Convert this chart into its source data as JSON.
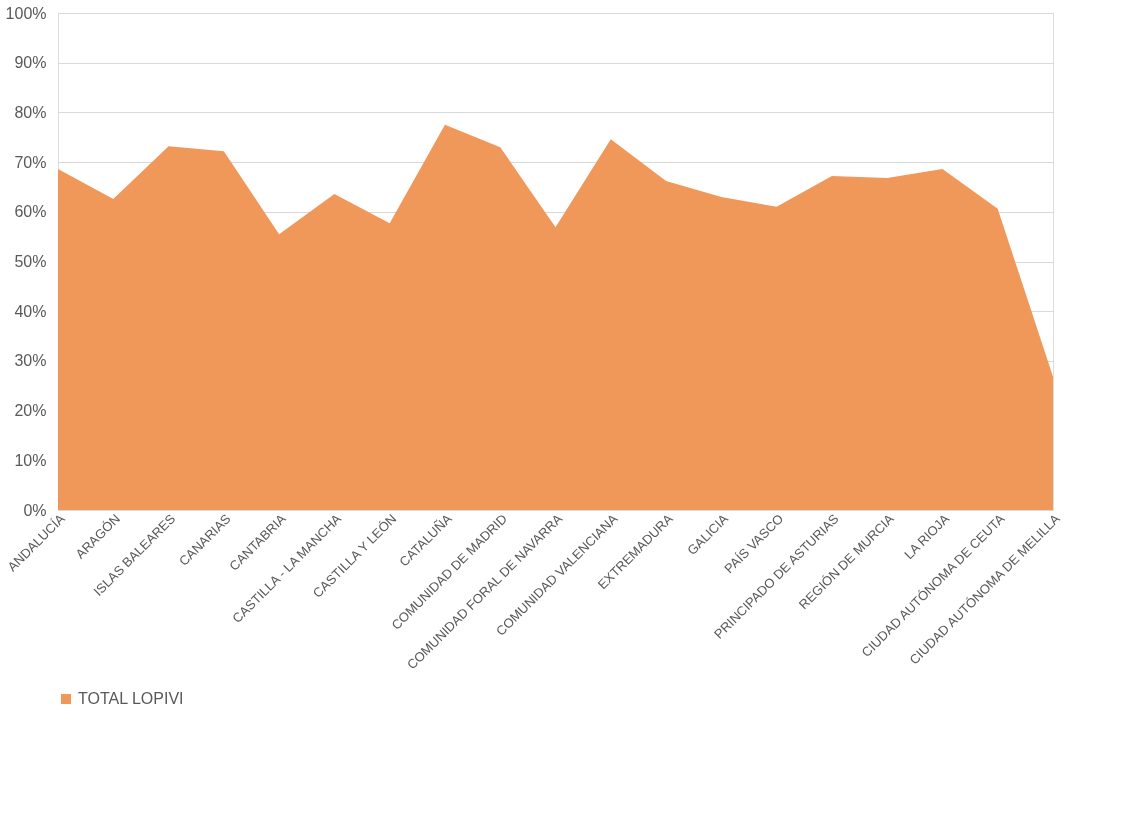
{
  "chart_data": {
    "type": "area",
    "categories": [
      "ANDALUCÍA",
      "ARAGÓN",
      "ISLAS BALEARES",
      "CANARIAS",
      "CANTABRIA",
      "CASTILLA - LA MANCHA",
      "CASTILLA Y LEÓN",
      "CATALUÑA",
      "COMUNIDAD DE MADRID",
      "COMUNIDAD FORAL DE NAVARRA",
      "COMUNIDAD VALENCIANA",
      "EXTREMADURA",
      "GALICIA",
      "PAÍS VASCO",
      "PRINCIPADO DE ASTURIAS",
      "REGIÓN DE MURCIA",
      "LA RIOJA",
      "CIUDAD AUTÓNOMA DE CEUTA",
      "CIUDAD AUTÓNOMA DE MELILLA"
    ],
    "series": [
      {
        "name": "TOTAL LOPIVI",
        "color": "#f0975a",
        "values": [
          68.6,
          62.6,
          73.2,
          72.2,
          55.5,
          63.6,
          57.7,
          77.5,
          73.0,
          56.9,
          74.6,
          66.2,
          63.0,
          61.0,
          67.2,
          66.8,
          68.6,
          60.6,
          26.8
        ]
      }
    ],
    "ylim": [
      0,
      100
    ],
    "yticks": [
      {
        "value": 0,
        "label": "0%"
      },
      {
        "value": 10,
        "label": "10%"
      },
      {
        "value": 20,
        "label": "20%"
      },
      {
        "value": 30,
        "label": "30%"
      },
      {
        "value": 40,
        "label": "40%"
      },
      {
        "value": 50,
        "label": "50%"
      },
      {
        "value": 60,
        "label": "60%"
      },
      {
        "value": 70,
        "label": "70%"
      },
      {
        "value": 80,
        "label": "80%"
      },
      {
        "value": 90,
        "label": "90%"
      },
      {
        "value": 100,
        "label": "100%"
      }
    ],
    "grid": "y",
    "legend": "bottom"
  }
}
